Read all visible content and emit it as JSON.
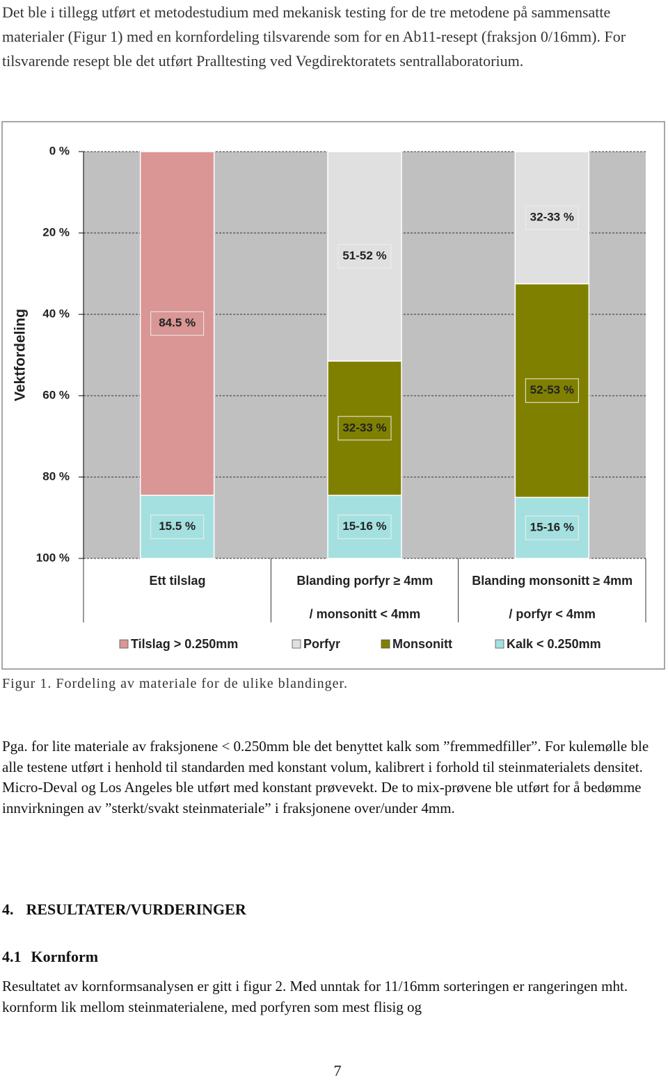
{
  "paragraphs": [
    "Det ble i tillegg utført et metodestudium med mekanisk testing for de tre metodene på sammensatte materialer (Figur 1) med en kornfordeling tilsvarende som for en Ab11-resept (fraksjon 0/16mm). For tilsvarende resept ble det utført Pralltesting ved Vegdirektoratets sentrallaboratorium.",
    "Pga. for lite materiale av fraksjonene < 0.250mm ble det benyttet kalk som ”fremmedfiller”. For kulemølle ble alle testene utført i henhold til standarden med konstant volum, kalibrert i forhold til steinmaterialets densitet. Micro-Deval og Los Angeles ble utført med konstant prøvevekt. De to mix-prøvene ble utført for å bedømme innvirkningen av ”sterkt/svakt steinmateriale” i fraksjonene over/under 4mm.",
    "Resultatet av kornformsanalysen er gitt i figur 2. Med unntak for 11/16mm sorteringen er rangeringen mht. kornform lik mellom steinmaterialene, med porfyren som mest flisig og"
  ],
  "caption": "Figur 1. Fordeling av materiale for de ulike blandinger.",
  "heading": {
    "number": "4.",
    "title": "RESULTATER/VURDERINGER"
  },
  "subheading": {
    "number": "4.1",
    "title": "Kornform"
  },
  "page_number": "7",
  "chart_data": {
    "type": "stacked-bar",
    "y_axis_label": "Vektfordeling",
    "y_inverted": true,
    "categories": [
      "Ett tilslag",
      "Blanding porfyr ≥ 4mm\n/ monsonitt < 4mm",
      "Blanding monsonitt ≥ 4mm\n/ porfyr < 4mm"
    ],
    "series": [
      {
        "name": "Tilslag > 0.250mm",
        "color": "#d99694",
        "values": [
          84.5,
          null,
          null
        ],
        "value_labels": [
          "84.5 %",
          null,
          null
        ]
      },
      {
        "name": "Porfyr",
        "color": "#e0e0e0",
        "values": [
          null,
          51.5,
          32.5
        ],
        "value_labels": [
          null,
          "51-52 %",
          "32-33 %"
        ]
      },
      {
        "name": "Monsonitt",
        "color": "#808000",
        "values": [
          null,
          33,
          52.5
        ],
        "value_labels": [
          null,
          "32-33 %",
          "52-53 %"
        ]
      },
      {
        "name": "Kalk < 0.250mm",
        "color": "#a5e0e0",
        "values": [
          15.5,
          15.5,
          15
        ],
        "value_labels": [
          "15.5 %",
          "15-16 %",
          "15-16 %"
        ]
      }
    ],
    "ylim": [
      0,
      100
    ],
    "yticks": [
      {
        "value": 0,
        "label": "0 %"
      },
      {
        "value": 20,
        "label": "20 %"
      },
      {
        "value": 40,
        "label": "40 %"
      },
      {
        "value": 60,
        "label": "60 %"
      },
      {
        "value": 80,
        "label": "80 %"
      },
      {
        "value": 100,
        "label": "100 %"
      }
    ],
    "grid": true,
    "plot_background": "#c0c0c0"
  }
}
